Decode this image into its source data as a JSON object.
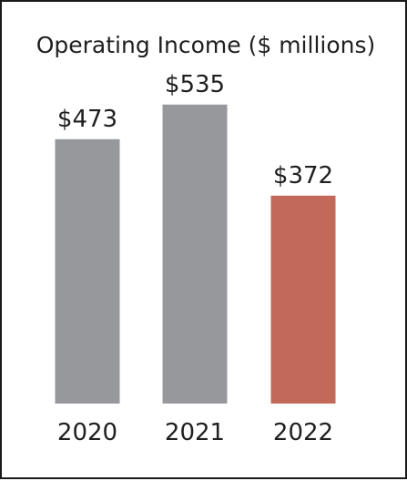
{
  "chart_data": {
    "type": "bar",
    "title": "Operating Income ($ millions)",
    "categories": [
      "2020",
      "2021",
      "2022"
    ],
    "values": [
      473,
      535,
      372
    ],
    "value_labels": [
      "$473",
      "$535",
      "$372"
    ],
    "ylim": [
      0,
      600
    ],
    "grid": false,
    "legend": "none",
    "colors": {
      "default_bar": "#97989b",
      "highlight_bar": "#c3695a"
    },
    "highlight_category": "2022"
  }
}
